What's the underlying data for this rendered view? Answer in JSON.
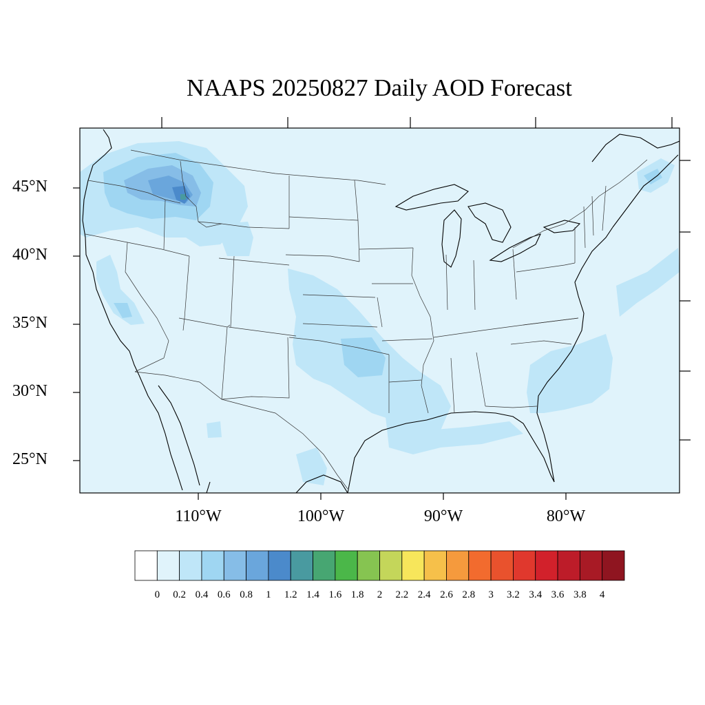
{
  "title": "NAAPS 20250827 Daily AOD Forecast",
  "map": {
    "projection": "Lambert conformal (tilted graticule)",
    "region": "Continental United States",
    "lat_labels": [
      "45°N",
      "40°N",
      "35°N",
      "30°N",
      "25°N"
    ],
    "lon_labels": [
      "110°W",
      "100°W",
      "90°W",
      "80°W"
    ],
    "land_background_color": "#e0f3fb",
    "boundary_color": "#000000",
    "aod_features": [
      {
        "area": "Washington / Oregon / Idaho / Montana",
        "aod_range": [
          0.2,
          1.4
        ],
        "peak_aod": 1.3
      },
      {
        "area": "Wyoming",
        "aod_range": [
          0.2,
          0.4
        ]
      },
      {
        "area": "California Central Valley",
        "aod_range": [
          0.2,
          0.8
        ]
      },
      {
        "area": "Kansas / Oklahoma / Texas",
        "aod_range": [
          0.2,
          0.8
        ]
      },
      {
        "area": "Gulf Coast",
        "aod_range": [
          0.2,
          0.4
        ]
      },
      {
        "area": "Southeast US / Atlantic offshore",
        "aod_range": [
          0.2,
          0.4
        ]
      },
      {
        "area": "South Texas / Mexico",
        "aod_range": [
          0.2,
          0.4
        ]
      },
      {
        "area": "Maine / Gulf of St. Lawrence",
        "aod_range": [
          0.2,
          0.6
        ]
      }
    ]
  },
  "colorbar": {
    "colors": [
      "#ffffff",
      "#e0f3fb",
      "#bfe6f8",
      "#9fd6f2",
      "#86bde7",
      "#6aa6dc",
      "#4b8acb",
      "#499aa0",
      "#47a672",
      "#4bb749",
      "#86c451",
      "#c4d65a",
      "#f7e65b",
      "#f6c04a",
      "#f59a3d",
      "#f26b2e",
      "#e9522d",
      "#e0382d",
      "#d2212b",
      "#bd1c29",
      "#a81a25",
      "#8f1520"
    ],
    "labels": [
      "0",
      "0.2",
      "0.4",
      "0.6",
      "0.8",
      "1",
      "1.2",
      "1.4",
      "1.6",
      "1.8",
      "2",
      "2.2",
      "2.4",
      "2.6",
      "2.8",
      "3",
      "3.2",
      "3.4",
      "3.6",
      "3.8",
      "4"
    ]
  }
}
